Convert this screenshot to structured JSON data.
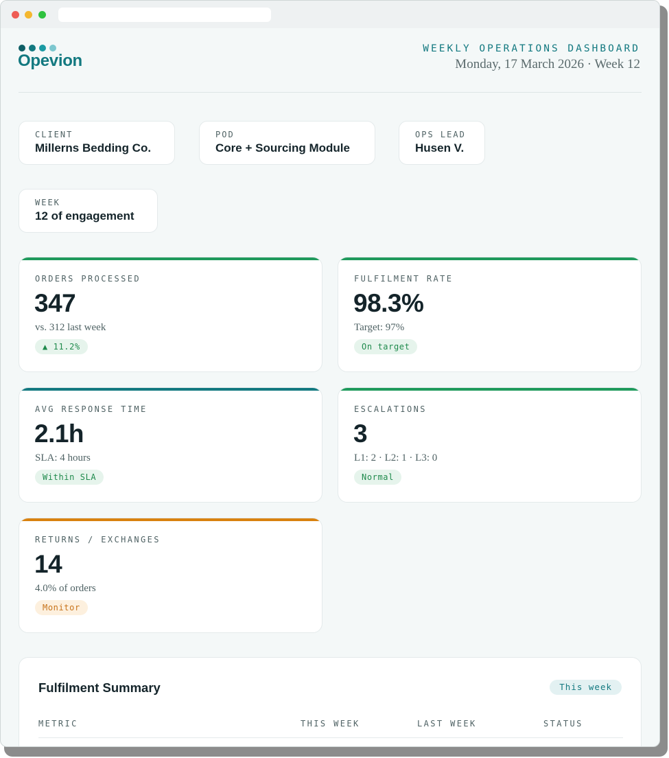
{
  "brand": {
    "name": "Opevion"
  },
  "header": {
    "title": "WEEKLY OPERATIONS DASHBOARD",
    "date_line": "Monday, 17 March 2026 · Week 12"
  },
  "info": [
    {
      "label": "CLIENT",
      "value": "Millerns Bedding Co."
    },
    {
      "label": "POD",
      "value": "Core + Sourcing Module"
    },
    {
      "label": "OPS LEAD",
      "value": "Husen V."
    },
    {
      "label": "WEEK",
      "value": "12 of engagement"
    }
  ],
  "metrics": [
    {
      "label": "ORDERS PROCESSED",
      "value": "347",
      "sub": "vs. 312 last week",
      "badge": "▲ 11.2%",
      "accent": "#1f9a5c",
      "badge_tone": "good"
    },
    {
      "label": "FULFILMENT RATE",
      "value": "98.3%",
      "sub": "Target: 97%",
      "badge": "On target",
      "accent": "#1f9a5c",
      "badge_tone": "good"
    },
    {
      "label": "AVG RESPONSE TIME",
      "value": "2.1h",
      "sub": "SLA: 4 hours",
      "badge": "Within SLA",
      "accent": "#137980",
      "badge_tone": "good"
    },
    {
      "label": "ESCALATIONS",
      "value": "3",
      "sub": "L1: 2 · L2: 1 · L3: 0",
      "badge": "Normal",
      "accent": "#1f9a5c",
      "badge_tone": "good"
    },
    {
      "label": "RETURNS / EXCHANGES",
      "value": "14",
      "sub": "4.0% of orders",
      "badge": "Monitor",
      "accent": "#d9820f",
      "badge_tone": "warn"
    }
  ],
  "summary": {
    "title": "Fulfilment Summary",
    "period_pill": "This week",
    "columns": [
      "METRIC",
      "THIS WEEK",
      "LAST WEEK",
      "STATUS"
    ]
  }
}
